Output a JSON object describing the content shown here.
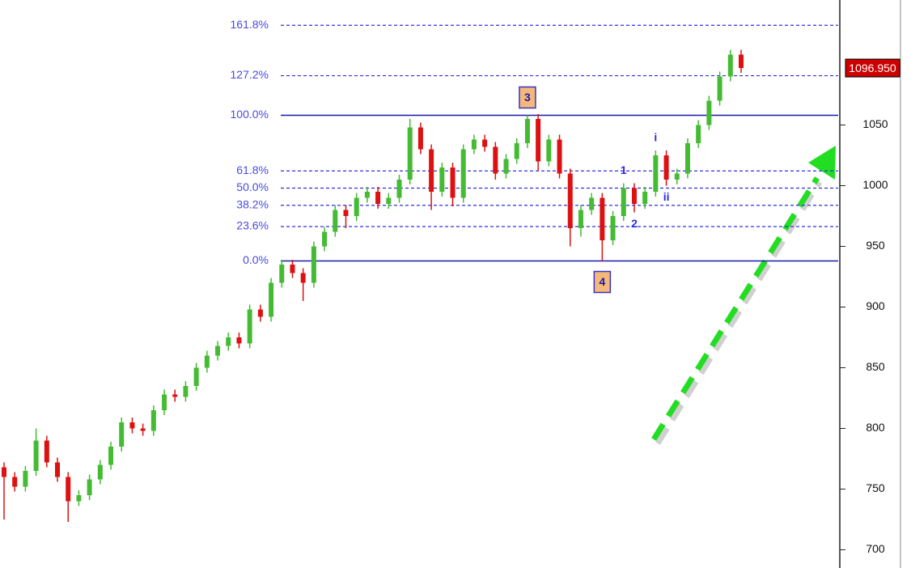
{
  "chart_data": {
    "type": "candlestick",
    "open": [
      768,
      760,
      752,
      765,
      790,
      772,
      760,
      740,
      745,
      758,
      770,
      785,
      805,
      800,
      798,
      815,
      828,
      826,
      835,
      850,
      860,
      868,
      875,
      870,
      898,
      892,
      920,
      935,
      928,
      920,
      950,
      962,
      980,
      975,
      990,
      995,
      985,
      990,
      1005,
      1048,
      1030,
      995,
      1015,
      990,
      1030,
      1038,
      1032,
      1010,
      1022,
      1035,
      1055,
      1020,
      1038,
      1010,
      965,
      980,
      990,
      955,
      975,
      998,
      985,
      995,
      1025,
      1005,
      1010,
      1035,
      1050,
      1070,
      1090,
      1108
    ],
    "high": [
      772,
      764,
      769,
      800,
      794,
      776,
      764,
      749,
      762,
      774,
      789,
      809,
      809,
      804,
      819,
      832,
      832,
      839,
      854,
      864,
      872,
      879,
      879,
      902,
      902,
      924,
      939,
      939,
      932,
      954,
      966,
      984,
      984,
      994,
      999,
      999,
      994,
      1009,
      1055,
      1052,
      1034,
      1019,
      1019,
      1034,
      1042,
      1042,
      1036,
      1026,
      1039,
      1058,
      1059,
      1042,
      1042,
      1014,
      984,
      994,
      994,
      979,
      1002,
      1002,
      999,
      1029,
      1029,
      1014,
      1039,
      1054,
      1074,
      1094,
      1112,
      1112
    ],
    "low": [
      725,
      748,
      748,
      761,
      768,
      756,
      723,
      736,
      741,
      754,
      766,
      781,
      796,
      794,
      794,
      811,
      822,
      822,
      831,
      846,
      856,
      864,
      866,
      866,
      888,
      888,
      916,
      924,
      905,
      916,
      946,
      958,
      965,
      971,
      986,
      981,
      981,
      986,
      1001,
      1026,
      980,
      991,
      983,
      986,
      1026,
      1028,
      1005,
      1006,
      1018,
      1031,
      1012,
      1016,
      1006,
      950,
      958,
      976,
      938,
      951,
      971,
      978,
      981,
      991,
      1000,
      1001,
      1006,
      1031,
      1046,
      1066,
      1086,
      1093
    ],
    "close": [
      760,
      752,
      765,
      790,
      772,
      760,
      740,
      745,
      758,
      770,
      785,
      805,
      800,
      798,
      815,
      828,
      826,
      835,
      850,
      860,
      868,
      875,
      870,
      898,
      892,
      920,
      935,
      928,
      920,
      950,
      962,
      980,
      975,
      990,
      995,
      985,
      990,
      1005,
      1048,
      1030,
      995,
      1015,
      990,
      1030,
      1038,
      1032,
      1010,
      1022,
      1035,
      1055,
      1020,
      1038,
      1010,
      965,
      980,
      990,
      955,
      975,
      998,
      985,
      995,
      1025,
      1005,
      1010,
      1035,
      1050,
      1070,
      1090,
      1108,
      1097
    ],
    "up_color": "#44bb33",
    "down_color": "#dd1111",
    "ylim": [
      685,
      1153
    ],
    "yticks": [
      700,
      750,
      800,
      850,
      900,
      950,
      1000,
      1050
    ],
    "fib_range": [
      938,
      1058
    ],
    "fib_levels": [
      {
        "value": 0,
        "label": "0.0%",
        "style": "solid"
      },
      {
        "value": 23.6,
        "label": "23.6%",
        "style": "dashed"
      },
      {
        "value": 38.2,
        "label": "38.2%",
        "style": "dashed"
      },
      {
        "value": 50,
        "label": "50.0%",
        "style": "dashed"
      },
      {
        "value": 61.8,
        "label": "61.8%",
        "style": "dashed"
      },
      {
        "value": 100,
        "label": "100.0%",
        "style": "solid"
      },
      {
        "value": 127.2,
        "label": "127.2%",
        "style": "dashed"
      },
      {
        "value": 161.8,
        "label": "161.8%",
        "style": "dashed"
      }
    ],
    "last_price": {
      "value": 1096.95,
      "label": "1096.950"
    },
    "annotations": [
      {
        "text": "3",
        "candle": 49,
        "position": "above",
        "boxed": true
      },
      {
        "text": "4",
        "candle": 56,
        "position": "below",
        "boxed": true
      },
      {
        "text": "1",
        "candle": 58,
        "position": "above",
        "boxed": false
      },
      {
        "text": "2",
        "candle": 59,
        "position": "below",
        "boxed": false
      },
      {
        "text": "i",
        "candle": 61,
        "position": "above",
        "boxed": false
      },
      {
        "text": "ii",
        "candle": 62,
        "position": "below",
        "boxed": false
      }
    ]
  }
}
